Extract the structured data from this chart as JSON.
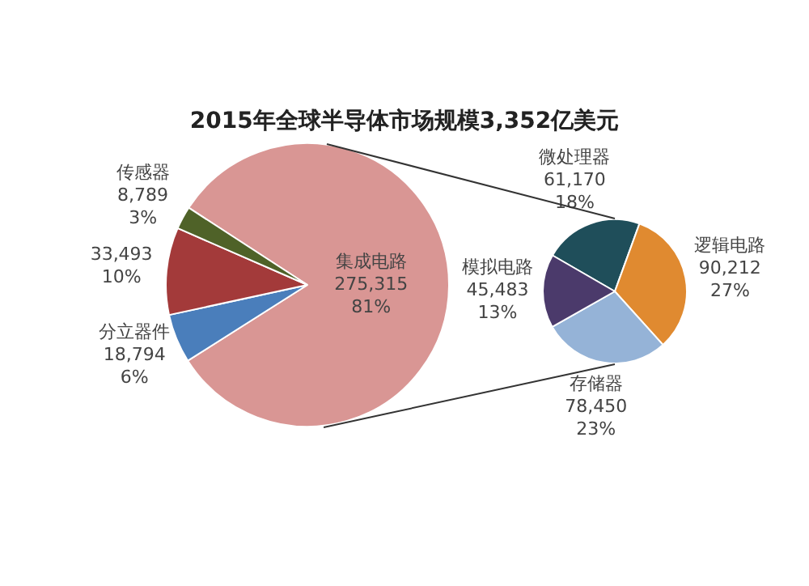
{
  "chart_data": [
    {
      "type": "pie",
      "title": "2015年全球半导体市场规模3,352亿美元",
      "categories": [
        "集成电路",
        "分立器件",
        null,
        "传感器"
      ],
      "values": [
        275315,
        18794,
        33493,
        8789
      ],
      "colors": [
        "#d99694",
        "#4a7ebb",
        "#a33a3a",
        "#4f6228"
      ],
      "value_labels": [
        "275,315\n81%",
        "18,794\n6%",
        "33,493\n10%",
        "8,789\n3%"
      ]
    },
    {
      "type": "pie",
      "categories": [
        "微处理器",
        "逻辑电路",
        "存储器",
        "模拟电路"
      ],
      "values": [
        61170,
        90212,
        78450,
        45483
      ],
      "colors": [
        "#1f4e5a",
        "#e08a30",
        "#95b3d7",
        "#4b3a6b"
      ],
      "value_labels": [
        "61,170\n18%",
        "90,212\n27%",
        "78,450\n23%",
        "45,483\n13%"
      ]
    }
  ]
}
